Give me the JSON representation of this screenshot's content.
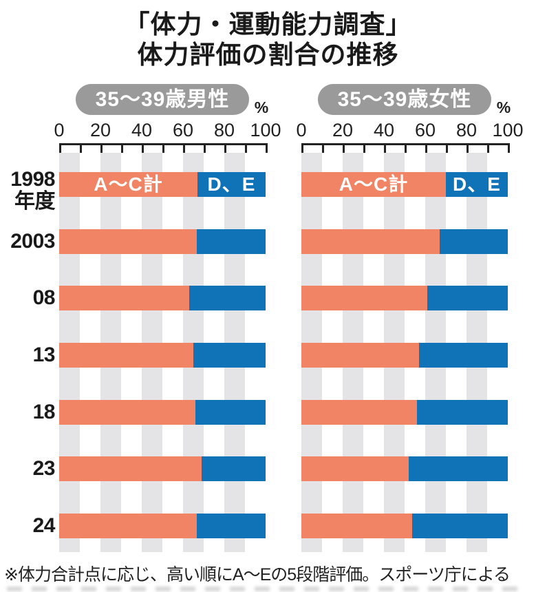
{
  "title": {
    "line1": "「体力・運動能力調査」",
    "line2": "体力評価の割合の推移"
  },
  "unit_label": "%",
  "footnote": "※体力合計点に応じ、高い順にA〜Eの5段階評価。スポーツ庁による",
  "colors": {
    "segment_good": "#f08465",
    "segment_bad": "#1173b7",
    "pill_bg": "#9a9a9a",
    "pill_text": "#ffffff",
    "stripe_grey": "#e4e4e6",
    "axis": "#222222"
  },
  "axis": {
    "tick_labels": [
      "0",
      "20",
      "40",
      "60",
      "80",
      "100"
    ],
    "minor_step": 10,
    "max": 100
  },
  "row_labels": [
    [
      "1998",
      "年度"
    ],
    [
      "2003"
    ],
    [
      "08"
    ],
    [
      "13"
    ],
    [
      "18"
    ],
    [
      "23"
    ],
    [
      "24"
    ]
  ],
  "chart_data": {
    "type": "bar",
    "stacked": true,
    "horizontal": true,
    "title": "「体力・運動能力調査」体力評価の割合の推移",
    "xlabel": "%",
    "xlim": [
      0,
      100
    ],
    "grid": "alternating vertical grey bands every 10%",
    "categories": [
      "1998年度",
      "2003",
      "08",
      "13",
      "18",
      "23",
      "24"
    ],
    "charts": [
      {
        "group": "35〜39歳男性",
        "segment_labels": [
          "A〜C計",
          "D、E"
        ],
        "series": [
          {
            "name": "A〜C計",
            "color": "#f08465",
            "values": [
              67,
              66.5,
              63,
              65,
              66,
              69,
              66.5
            ]
          },
          {
            "name": "D、E",
            "color": "#1173b7",
            "values": [
              33,
              33.5,
              37,
              35,
              34,
              31,
              33.5
            ]
          }
        ]
      },
      {
        "group": "35〜39歳女性",
        "segment_labels": [
          "A〜C計",
          "D、E"
        ],
        "series": [
          {
            "name": "A〜C計",
            "color": "#f08465",
            "values": [
              70,
              67,
              61,
              57,
              56,
              52,
              53.5
            ]
          },
          {
            "name": "D、E",
            "color": "#1173b7",
            "values": [
              30,
              33,
              39,
              43,
              44,
              48,
              46.5
            ]
          }
        ]
      }
    ]
  }
}
